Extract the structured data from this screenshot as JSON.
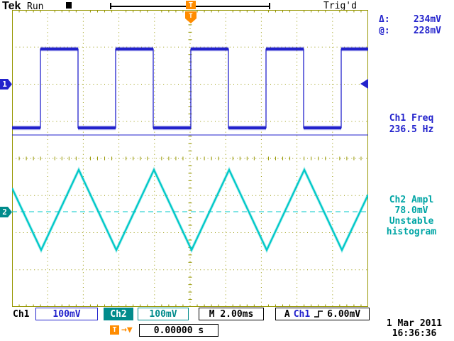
{
  "header": {
    "logo": "Tek",
    "acq_status": "Run",
    "trigger_status": "Trig'd",
    "trigger_marker": "T"
  },
  "cursors": {
    "delta_label": "Δ:",
    "delta_value": "234mV",
    "at_label": "@:",
    "at_value": "228mV"
  },
  "measurements": {
    "ch1_label": "Ch1 Freq",
    "ch1_value": "236.5 Hz",
    "ch2_label": "Ch2 Ampl",
    "ch2_value": "78.0mV",
    "ch2_note_line1": "Unstable",
    "ch2_note_line2": "histogram"
  },
  "channel_markers": {
    "ch1": "1",
    "ch2": "2",
    "trigger": "T"
  },
  "status_bar": {
    "ch1_label": "Ch1",
    "ch1_scale": "100mV",
    "ch2_label": "Ch2",
    "ch2_scale": "100mV",
    "timebase": "M 2.00ms",
    "trigger_prefix": "A",
    "trigger_source": "Ch1",
    "trigger_level": "6.00mV",
    "trigger_pos_marker": "T",
    "trigger_pos_arrow": "→▼",
    "trigger_pos_value": "0.00000 s",
    "date": "1 Mar 2011",
    "time": "16:36:36"
  },
  "waveforms": {
    "ch1": {
      "shape": "square",
      "scale": "100mV/div",
      "period_divisions": 2.1
    },
    "ch2": {
      "shape": "triangle",
      "scale": "100mV/div",
      "period_divisions": 2.1
    }
  },
  "colors": {
    "ch1_blue": "#2222cc",
    "ch2_cyan": "#00c8c8",
    "graticule_olive": "#969600",
    "trigger_orange": "#ff8c00"
  }
}
